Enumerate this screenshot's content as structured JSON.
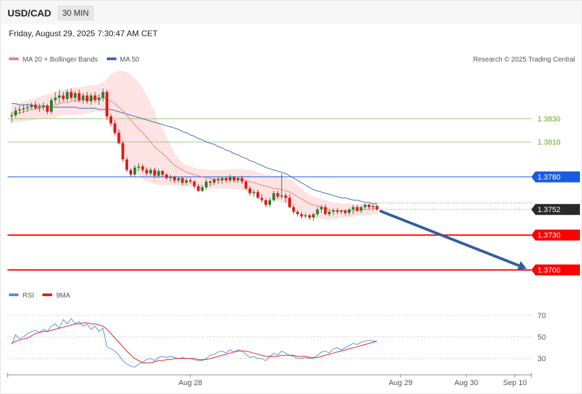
{
  "header": {
    "symbol": "USD/CAD",
    "timeframe": "30 MIN",
    "datetime": "Friday, August 29, 2025 7:30:47 AM CET"
  },
  "legend": {
    "ma20": "MA 20 + Bollinger Bands",
    "ma50": "MA 50",
    "credit": "Research © 2025 Trading Central",
    "rsi": "RSI",
    "rsi_ma": "9MA"
  },
  "colors": {
    "bull": "#2d7d32",
    "bear": "#e01818",
    "ma20": "#f08080",
    "bands": "#fde0e0",
    "ma50": "#3f68b0",
    "resistance_blue": "#1a5ce0",
    "target_red": "#ff0000",
    "green_level": "#66aa22",
    "arrow": "#2f5e9e",
    "rsi_line": "#5b8fdb",
    "rsi_ma": "#e02020"
  },
  "chart_data": {
    "type": "candlestick",
    "x_labels": [
      "Aug 28",
      "Aug 29",
      "Aug 30",
      "Sep 10"
    ],
    "y_range": [
      1.3688,
      1.3888
    ],
    "levels": [
      {
        "label": "1.3830",
        "value": 1.383,
        "kind": "thin-green"
      },
      {
        "label": "1.3810",
        "value": 1.381,
        "kind": "thin-green"
      },
      {
        "label": "1.3780",
        "value": 1.378,
        "kind": "resistance"
      },
      {
        "label": "1.3752",
        "value": 1.3752,
        "kind": "current"
      },
      {
        "label": "1.3730",
        "value": 1.373,
        "kind": "support"
      },
      {
        "label": "1.3700",
        "value": 1.37,
        "kind": "support"
      }
    ],
    "forecast": {
      "from": 1.3752,
      "to": 1.37
    },
    "candles": [
      [
        1.3832,
        1.3836,
        1.3827,
        1.3833
      ],
      [
        1.3833,
        1.384,
        1.3831,
        1.3837
      ],
      [
        1.3837,
        1.3841,
        1.3834,
        1.3838
      ],
      [
        1.3838,
        1.3842,
        1.3835,
        1.3839
      ],
      [
        1.3839,
        1.3843,
        1.3836,
        1.384
      ],
      [
        1.384,
        1.3844,
        1.3838,
        1.3842
      ],
      [
        1.3842,
        1.3845,
        1.3838,
        1.3839
      ],
      [
        1.3839,
        1.3843,
        1.3836,
        1.384
      ],
      [
        1.384,
        1.3844,
        1.3837,
        1.3841
      ],
      [
        1.3841,
        1.3843,
        1.3834,
        1.3836
      ],
      [
        1.3836,
        1.3848,
        1.3834,
        1.3846
      ],
      [
        1.3846,
        1.3853,
        1.3843,
        1.3848
      ],
      [
        1.3848,
        1.3855,
        1.3844,
        1.385
      ],
      [
        1.385,
        1.3853,
        1.3845,
        1.3847
      ],
      [
        1.3847,
        1.3855,
        1.3845,
        1.3853
      ],
      [
        1.3853,
        1.3856,
        1.3846,
        1.3848
      ],
      [
        1.3848,
        1.3854,
        1.3845,
        1.3852
      ],
      [
        1.3852,
        1.3855,
        1.3844,
        1.3846
      ],
      [
        1.3846,
        1.3852,
        1.3843,
        1.385
      ],
      [
        1.385,
        1.3853,
        1.3843,
        1.3845
      ],
      [
        1.3845,
        1.3852,
        1.3842,
        1.385
      ],
      [
        1.385,
        1.3853,
        1.3844,
        1.3846
      ],
      [
        1.3846,
        1.3851,
        1.3842,
        1.3848
      ],
      [
        1.3848,
        1.3856,
        1.3845,
        1.3853
      ],
      [
        1.3853,
        1.3855,
        1.3829,
        1.3832
      ],
      [
        1.3832,
        1.3834,
        1.3824,
        1.3826
      ],
      [
        1.3826,
        1.3829,
        1.3816,
        1.3818
      ],
      [
        1.3818,
        1.3821,
        1.3808,
        1.3809
      ],
      [
        1.3809,
        1.3811,
        1.3793,
        1.3795
      ],
      [
        1.3795,
        1.3797,
        1.3784,
        1.3786
      ],
      [
        1.3786,
        1.3788,
        1.378,
        1.3782
      ],
      [
        1.3782,
        1.379,
        1.378,
        1.3788
      ],
      [
        1.3788,
        1.3792,
        1.3785,
        1.3789
      ],
      [
        1.3789,
        1.3791,
        1.3784,
        1.3786
      ],
      [
        1.3786,
        1.3788,
        1.3781,
        1.3783
      ],
      [
        1.3783,
        1.3788,
        1.3781,
        1.3786
      ],
      [
        1.3786,
        1.3788,
        1.3779,
        1.3781
      ],
      [
        1.3781,
        1.3787,
        1.3779,
        1.3785
      ],
      [
        1.3785,
        1.3786,
        1.378,
        1.3782
      ],
      [
        1.3782,
        1.3783,
        1.3778,
        1.3779
      ],
      [
        1.3779,
        1.3782,
        1.3776,
        1.378
      ],
      [
        1.378,
        1.3781,
        1.3775,
        1.3777
      ],
      [
        1.3777,
        1.378,
        1.3775,
        1.3779
      ],
      [
        1.3779,
        1.378,
        1.3773,
        1.3775
      ],
      [
        1.3775,
        1.3779,
        1.3773,
        1.3777
      ],
      [
        1.3777,
        1.3779,
        1.3774,
        1.3776
      ],
      [
        1.3776,
        1.3777,
        1.377,
        1.3772
      ],
      [
        1.3772,
        1.3774,
        1.3767,
        1.3768
      ],
      [
        1.3768,
        1.3773,
        1.3767,
        1.3771
      ],
      [
        1.3771,
        1.3778,
        1.3769,
        1.3776
      ],
      [
        1.3776,
        1.3777,
        1.3772,
        1.3775
      ],
      [
        1.3775,
        1.3779,
        1.3773,
        1.3778
      ],
      [
        1.3778,
        1.378,
        1.3774,
        1.3777
      ],
      [
        1.3777,
        1.378,
        1.3774,
        1.3779
      ],
      [
        1.3779,
        1.378,
        1.3775,
        1.3777
      ],
      [
        1.3777,
        1.3782,
        1.3775,
        1.378
      ],
      [
        1.378,
        1.3781,
        1.3775,
        1.3777
      ],
      [
        1.3777,
        1.378,
        1.3775,
        1.3779
      ],
      [
        1.3779,
        1.3781,
        1.3774,
        1.3776
      ],
      [
        1.3776,
        1.3777,
        1.3769,
        1.377
      ],
      [
        1.377,
        1.3772,
        1.3764,
        1.3766
      ],
      [
        1.3766,
        1.3769,
        1.3763,
        1.3767
      ],
      [
        1.3767,
        1.3769,
        1.3761,
        1.3762
      ],
      [
        1.3762,
        1.3765,
        1.3758,
        1.376
      ],
      [
        1.376,
        1.3762,
        1.3754,
        1.3756
      ],
      [
        1.3756,
        1.3762,
        1.3754,
        1.376
      ],
      [
        1.376,
        1.3768,
        1.3759,
        1.3766
      ],
      [
        1.3766,
        1.3768,
        1.3761,
        1.3763
      ],
      [
        1.3763,
        1.3783,
        1.3761,
        1.3764
      ],
      [
        1.3764,
        1.3766,
        1.3758,
        1.3762
      ],
      [
        1.3762,
        1.3765,
        1.3753,
        1.3754
      ],
      [
        1.3754,
        1.3756,
        1.3748,
        1.375
      ],
      [
        1.375,
        1.3752,
        1.3746,
        1.3748
      ],
      [
        1.3748,
        1.375,
        1.3744,
        1.3746
      ],
      [
        1.3746,
        1.3749,
        1.3744,
        1.3747
      ],
      [
        1.3747,
        1.3748,
        1.3743,
        1.3745
      ],
      [
        1.3745,
        1.3749,
        1.3742,
        1.3748
      ],
      [
        1.3748,
        1.3754,
        1.3746,
        1.3752
      ],
      [
        1.3752,
        1.3756,
        1.3749,
        1.3754
      ],
      [
        1.3754,
        1.3756,
        1.3747,
        1.3748
      ],
      [
        1.3748,
        1.3752,
        1.3746,
        1.375
      ],
      [
        1.375,
        1.3753,
        1.3747,
        1.3751
      ],
      [
        1.3751,
        1.3753,
        1.3748,
        1.375
      ],
      [
        1.375,
        1.3752,
        1.3748,
        1.3751
      ],
      [
        1.3751,
        1.3752,
        1.3747,
        1.3749
      ],
      [
        1.3749,
        1.3753,
        1.3747,
        1.3752
      ],
      [
        1.3752,
        1.3756,
        1.3748,
        1.3754
      ],
      [
        1.3754,
        1.3756,
        1.375,
        1.3751
      ],
      [
        1.3751,
        1.3755,
        1.3749,
        1.3754
      ],
      [
        1.3754,
        1.3757,
        1.3752,
        1.3756
      ],
      [
        1.3756,
        1.3757,
        1.3752,
        1.3754
      ],
      [
        1.3754,
        1.3756,
        1.3751,
        1.3755
      ],
      [
        1.3755,
        1.3756,
        1.3751,
        1.3752
      ]
    ],
    "ma20": [
      1.3834,
      1.3835,
      1.3835,
      1.3836,
      1.3837,
      1.3838,
      1.3838,
      1.3839,
      1.384,
      1.384,
      1.3841,
      1.3842,
      1.3843,
      1.3844,
      1.3844,
      1.3845,
      1.3845,
      1.3846,
      1.3846,
      1.3847,
      1.3847,
      1.3848,
      1.3848,
      1.3848,
      1.3847,
      1.3845,
      1.3843,
      1.384,
      1.3837,
      1.3833,
      1.3829,
      1.3825,
      1.3821,
      1.3818,
      1.3814,
      1.381,
      1.3806,
      1.3803,
      1.38,
      1.3797,
      1.3793,
      1.379,
      1.3788,
      1.3786,
      1.3784,
      1.3783,
      1.3782,
      1.3781,
      1.378,
      1.3779,
      1.3779,
      1.3778,
      1.3778,
      1.3778,
      1.3778,
      1.3778,
      1.3778,
      1.3778,
      1.3778,
      1.3777,
      1.3776,
      1.3775,
      1.3774,
      1.3773,
      1.3772,
      1.3771,
      1.377,
      1.377,
      1.3769,
      1.3768,
      1.3767,
      1.3765,
      1.3763,
      1.3761,
      1.3759,
      1.3757,
      1.3756,
      1.3755,
      1.3754,
      1.3753,
      1.3752,
      1.3751,
      1.3751,
      1.3751,
      1.3751,
      1.3751,
      1.3751,
      1.3751,
      1.3752,
      1.3752,
      1.3752,
      1.3753,
      1.3753
    ],
    "bb_upper": [
      1.3842,
      1.3843,
      1.3844,
      1.3845,
      1.3846,
      1.3847,
      1.3848,
      1.3849,
      1.385,
      1.3851,
      1.3852,
      1.3853,
      1.3854,
      1.3855,
      1.3856,
      1.3856,
      1.3857,
      1.3857,
      1.3858,
      1.3858,
      1.3858,
      1.3859,
      1.386,
      1.3861,
      1.3864,
      1.3868,
      1.387,
      1.3871,
      1.3871,
      1.387,
      1.3868,
      1.3865,
      1.3861,
      1.3856,
      1.385,
      1.3843,
      1.3836,
      1.3828,
      1.3821,
      1.3814,
      1.3807,
      1.38,
      1.3796,
      1.3792,
      1.379,
      1.3789,
      1.3788,
      1.3787,
      1.3787,
      1.3787,
      1.3786,
      1.3786,
      1.3786,
      1.3786,
      1.3786,
      1.3786,
      1.3787,
      1.3787,
      1.3787,
      1.3786,
      1.3786,
      1.3785,
      1.3784,
      1.3783,
      1.3782,
      1.3782,
      1.3781,
      1.3781,
      1.378,
      1.3779,
      1.3778,
      1.3776,
      1.3773,
      1.377,
      1.3767,
      1.3765,
      1.3763,
      1.3762,
      1.3761,
      1.376,
      1.3759,
      1.3758,
      1.3758,
      1.3757,
      1.3757,
      1.3757,
      1.3756,
      1.3756,
      1.3757,
      1.3757,
      1.3757,
      1.3758,
      1.3758
    ],
    "bb_lower": [
      1.3826,
      1.3827,
      1.3827,
      1.3828,
      1.3828,
      1.3829,
      1.3829,
      1.383,
      1.383,
      1.383,
      1.383,
      1.3831,
      1.3832,
      1.3833,
      1.3833,
      1.3833,
      1.3833,
      1.3834,
      1.3834,
      1.3835,
      1.3835,
      1.3836,
      1.3836,
      1.3836,
      1.383,
      1.3822,
      1.3815,
      1.3808,
      1.3802,
      1.3796,
      1.379,
      1.3785,
      1.3781,
      1.3778,
      1.3776,
      1.3775,
      1.3774,
      1.3773,
      1.3773,
      1.3773,
      1.3773,
      1.3773,
      1.3773,
      1.3772,
      1.3772,
      1.3771,
      1.3771,
      1.377,
      1.377,
      1.377,
      1.377,
      1.377,
      1.377,
      1.377,
      1.377,
      1.377,
      1.3769,
      1.3769,
      1.3769,
      1.3768,
      1.3766,
      1.3765,
      1.3764,
      1.3763,
      1.3762,
      1.376,
      1.3759,
      1.3759,
      1.3758,
      1.3757,
      1.3756,
      1.3754,
      1.3752,
      1.375,
      1.3748,
      1.3746,
      1.3745,
      1.3744,
      1.3744,
      1.3743,
      1.3743,
      1.3744,
      1.3744,
      1.3745,
      1.3745,
      1.3745,
      1.3746,
      1.3746,
      1.3747,
      1.3747,
      1.3747,
      1.3748,
      1.3748
    ],
    "ma50": [
      1.3843,
      1.3843,
      1.3842,
      1.3842,
      1.3842,
      1.3842,
      1.3841,
      1.3841,
      1.3841,
      1.3841,
      1.384,
      1.384,
      1.384,
      1.384,
      1.384,
      1.384,
      1.384,
      1.3839,
      1.3839,
      1.3839,
      1.3839,
      1.3839,
      1.3838,
      1.3838,
      1.3838,
      1.3838,
      1.3837,
      1.3836,
      1.3835,
      1.3834,
      1.3833,
      1.3832,
      1.3831,
      1.383,
      1.3829,
      1.3828,
      1.3827,
      1.3826,
      1.3825,
      1.3824,
      1.3823,
      1.3822,
      1.3821,
      1.3819,
      1.3818,
      1.3816,
      1.3815,
      1.3813,
      1.3812,
      1.381,
      1.3809,
      1.3808,
      1.3806,
      1.3805,
      1.3803,
      1.3802,
      1.38,
      1.3799,
      1.3797,
      1.3796,
      1.3794,
      1.3793,
      1.3791,
      1.379,
      1.3788,
      1.3787,
      1.3786,
      1.3785,
      1.3784,
      1.3783,
      1.3781,
      1.3779,
      1.3777,
      1.3775,
      1.3773,
      1.3771,
      1.3769,
      1.3768,
      1.3767,
      1.3766,
      1.3765,
      1.3764,
      1.3763,
      1.3762,
      1.3762,
      1.3761,
      1.376,
      1.376,
      1.3759,
      1.3758,
      1.3758,
      1.3757,
      1.3757
    ],
    "rsi": [
      {
        "name": "RSI",
        "values": [
          43,
          52,
          48,
          50,
          53,
          55,
          56,
          54,
          57,
          55,
          60,
          62,
          58,
          66,
          62,
          67,
          62,
          64,
          60,
          62,
          57,
          60,
          55,
          58,
          41,
          39,
          37,
          33,
          28,
          25,
          23,
          22,
          25,
          27,
          29,
          30,
          28,
          31,
          32,
          31,
          32,
          31,
          30,
          31,
          30,
          30,
          29,
          28,
          28,
          30,
          33,
          34,
          36,
          37,
          35,
          38,
          36,
          38,
          37,
          34,
          31,
          32,
          30,
          30,
          28,
          32,
          35,
          33,
          37,
          35,
          33,
          32,
          30,
          30,
          31,
          30,
          30,
          33,
          36,
          37,
          35,
          39,
          40,
          38,
          40,
          42,
          44,
          43,
          45,
          46,
          47,
          46,
          46
        ]
      },
      {
        "name": "9MA",
        "values": [
          44,
          46,
          47,
          48,
          49,
          51,
          53,
          54,
          55,
          55,
          56,
          57,
          58,
          59,
          60,
          61,
          62,
          62,
          63,
          63,
          62,
          62,
          61,
          60,
          57,
          53,
          49,
          45,
          41,
          37,
          33,
          30,
          28,
          26,
          26,
          26,
          27,
          28,
          28,
          29,
          29,
          30,
          30,
          30,
          30,
          30,
          30,
          29,
          29,
          29,
          30,
          31,
          32,
          33,
          34,
          35,
          36,
          37,
          37,
          37,
          36,
          35,
          34,
          33,
          32,
          32,
          32,
          32,
          33,
          33,
          33,
          33,
          32,
          32,
          32,
          31,
          31,
          31,
          32,
          33,
          34,
          35,
          36,
          37,
          38,
          39,
          40,
          41,
          42,
          43,
          44,
          45,
          46
        ]
      }
    ],
    "rsi_levels": [
      "70",
      "50",
      "30"
    ]
  }
}
